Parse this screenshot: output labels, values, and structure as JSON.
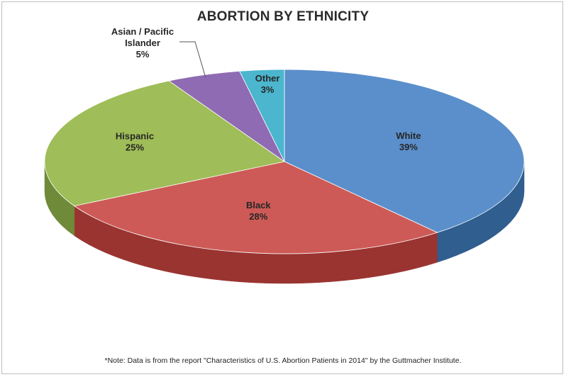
{
  "chart_data": {
    "type": "pie",
    "title": "ABORTION BY ETHNICITY",
    "slices": [
      {
        "label": "White",
        "value_label": "39%",
        "value": 39,
        "color": "#5b8fcb",
        "side_color": "#2f5e8f"
      },
      {
        "label": "Black",
        "value_label": "28%",
        "value": 28,
        "color": "#cd5a56",
        "side_color": "#9a3431"
      },
      {
        "label": "Hispanic",
        "value_label": "25%",
        "value": 25,
        "color": "#9fbd58",
        "side_color": "#6f8a38"
      },
      {
        "label": "Asian / Pacific Islander",
        "value_label": "5%",
        "value": 5,
        "color": "#8f6bb3",
        "side_color": "#5e4680"
      },
      {
        "label": "Other",
        "value_label": "3%",
        "value": 3,
        "color": "#4bb6ce",
        "side_color": "#2d8196"
      }
    ]
  },
  "note": "*Note: Data is from the report \"Characteristics of U.S. Abortion Patients in 2014\" by the Guttmacher Institute."
}
